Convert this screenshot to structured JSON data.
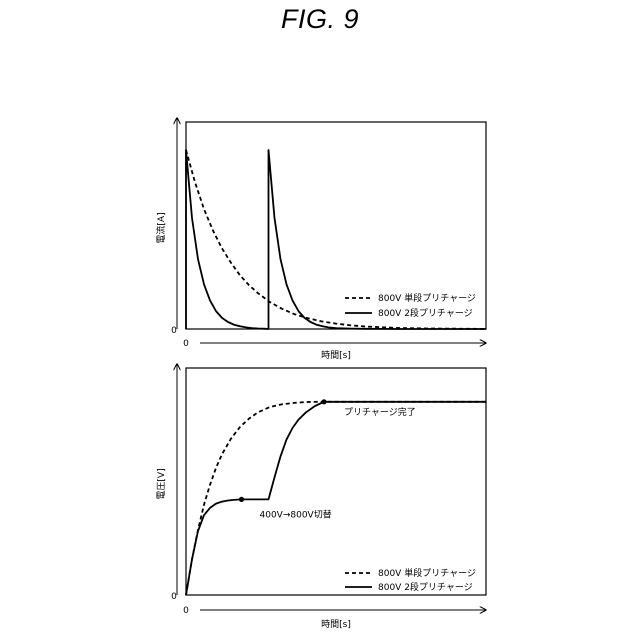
{
  "figure": {
    "title": "FIG. 9"
  },
  "chart_data": [
    {
      "type": "line",
      "ylabel": "電流[A]",
      "xlabel": "時間[s]",
      "x_origin_label": "0",
      "y_origin_label": "0",
      "xlim": [
        0,
        100
      ],
      "ylim": [
        0,
        100
      ],
      "grid": false,
      "legend_position": "bottom-right",
      "series": [
        {
          "name": "800V 単段プリチャージ",
          "style": "dashed",
          "x": [
            0,
            3,
            6,
            9,
            12,
            15,
            18,
            21,
            24,
            28,
            32,
            36,
            40,
            45,
            50,
            55,
            60,
            65,
            70,
            80,
            90,
            100
          ],
          "y": [
            100,
            82,
            67,
            55,
            45,
            37,
            30,
            24.5,
            20,
            15,
            11.3,
            8.4,
            6.3,
            4.3,
            3,
            2,
            1.4,
            1,
            0.6,
            0.3,
            0.15,
            0.05
          ]
        },
        {
          "name": "800V 2段プリチャージ",
          "style": "solid",
          "x": [
            0,
            0,
            2,
            4,
            6,
            8,
            10,
            12,
            14,
            16,
            18,
            20,
            22,
            24,
            26,
            27.5,
            27.5,
            27.5,
            29.5,
            31.5,
            33.5,
            35.5,
            37.5,
            39.5,
            41.5,
            43.5,
            45.5,
            47.5,
            50,
            55,
            60,
            70,
            80,
            100
          ],
          "y": [
            0,
            100,
            62,
            39,
            25,
            16,
            10,
            6.2,
            3.9,
            2.4,
            1.5,
            0.9,
            0.5,
            0.3,
            0.15,
            0,
            100,
            100,
            62,
            39,
            25,
            16,
            10,
            6.2,
            3.9,
            2.4,
            1.5,
            0.9,
            0.5,
            0.2,
            0.1,
            0,
            0,
            0
          ]
        }
      ]
    },
    {
      "type": "line",
      "ylabel": "電圧[V]",
      "xlabel": "時間[s]",
      "x_origin_label": "0",
      "y_origin_label": "0",
      "xlim": [
        0,
        100
      ],
      "ylim": [
        0,
        100
      ],
      "grid": false,
      "legend_position": "bottom-right",
      "annotations": [
        {
          "text": "400V→800V切替",
          "x": 18.5,
          "y": 45.5
        },
        {
          "text": "プリチャージ完了",
          "x": 46,
          "y": 92
        }
      ],
      "series": [
        {
          "name": "800V 単段プリチャージ",
          "style": "dashed",
          "x": [
            0,
            2,
            4,
            6,
            8,
            10,
            12,
            15,
            18,
            21,
            24,
            28,
            32,
            36,
            40,
            44,
            46,
            50,
            60,
            80,
            100
          ],
          "y": [
            0,
            17,
            31,
            43,
            52.5,
            60.5,
            67,
            74.5,
            80,
            84,
            87,
            89.5,
            90.8,
            91.5,
            91.9,
            92,
            92,
            92,
            92,
            92,
            92
          ]
        },
        {
          "name": "800V 2段プリチャージ",
          "style": "solid",
          "x": [
            0,
            2,
            4,
            6,
            8,
            10,
            12,
            14,
            16,
            18.5,
            21,
            24,
            27.5,
            29.5,
            31.5,
            33.5,
            35.5,
            37.5,
            40,
            43,
            46,
            50,
            60,
            80,
            100
          ],
          "y": [
            0,
            17,
            30.5,
            38,
            41.5,
            43.5,
            44.5,
            45,
            45.3,
            45.5,
            45.5,
            45.5,
            45.5,
            56,
            66,
            74,
            79.5,
            83.5,
            87,
            90,
            92,
            92,
            92,
            92,
            92
          ]
        }
      ]
    }
  ]
}
